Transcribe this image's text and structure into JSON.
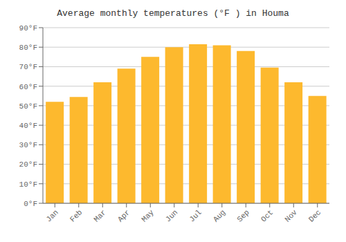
{
  "chart_data": {
    "type": "bar",
    "title": "Average monthly temperatures (°F ) in Houma",
    "categories": [
      "Jan",
      "Feb",
      "Mar",
      "Apr",
      "May",
      "Jun",
      "Jul",
      "Aug",
      "Sep",
      "Oct",
      "Nov",
      "Dec"
    ],
    "values": [
      52,
      54.5,
      62,
      69,
      75,
      80,
      81.5,
      81,
      78,
      69.5,
      62,
      55
    ],
    "color": "#FDB92E",
    "ylim": [
      0,
      90
    ],
    "yticks": [
      {
        "value": 0,
        "label": "0°F"
      },
      {
        "value": 10,
        "label": "10°F"
      },
      {
        "value": 20,
        "label": "20°F"
      },
      {
        "value": 30,
        "label": "30°F"
      },
      {
        "value": 40,
        "label": "40°F"
      },
      {
        "value": 50,
        "label": "50°F"
      },
      {
        "value": 60,
        "label": "60°F"
      },
      {
        "value": 70,
        "label": "70°F"
      },
      {
        "value": 80,
        "label": "80°F"
      },
      {
        "value": 90,
        "label": "90°F"
      }
    ],
    "grid": true
  }
}
